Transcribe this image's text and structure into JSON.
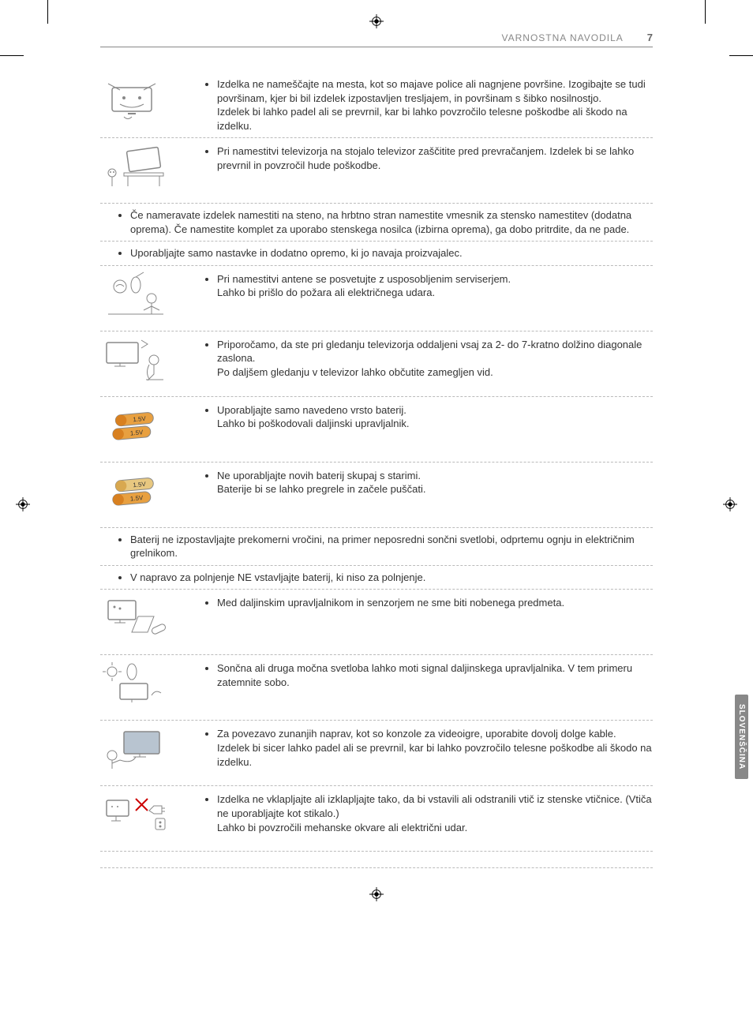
{
  "header": {
    "title": "VARNOSTNA NAVODILA",
    "page": "7"
  },
  "sideTab": "SLOVENŠČINA",
  "rows": [
    {
      "type": "icon",
      "text": "Izdelka ne nameščajte na mesta, kot so majave police ali nagnjene površine. Izogibajte se tudi površinam, kjer bi bil izdelek izpostavljen tresljajem, in površinam s šibko nosilnostjo.\nIzdelek bi lahko padel ali se prevrnil, kar bi lahko povzročilo telesne poškodbe ali škodo na izdelku."
    },
    {
      "type": "icon",
      "text": "Pri namestitvi televizorja na stojalo televizor zaščitite pred prevračanjem. Izdelek bi se lahko prevrnil in povzročil hude poškodbe."
    },
    {
      "type": "full",
      "text": "Če nameravate izdelek namestiti na steno, na hrbtno stran namestite vmesnik za stensko namestitev (dodatna oprema). Če namestite komplet za uporabo stenskega nosilca (izbirna oprema), ga dobo pritrdite, da ne pade."
    },
    {
      "type": "full",
      "text": "Uporabljajte samo nastavke in dodatno opremo, ki jo navaja proizvajalec."
    },
    {
      "type": "icon",
      "text": "Pri namestitvi antene se posvetujte z usposobljenim serviserjem.\nLahko bi prišlo do požara ali električnega udara."
    },
    {
      "type": "icon",
      "text": "Priporočamo, da ste pri gledanju televizorja oddaljeni vsaj za 2- do 7-kratno dolžino diagonale zaslona.\nPo daljšem gledanju v televizor lahko občutite zamegljen vid."
    },
    {
      "type": "icon",
      "text": "Uporabljajte samo navedeno vrsto baterij.\nLahko bi poškodovali daljinski upravljalnik."
    },
    {
      "type": "icon",
      "text": "Ne uporabljajte novih baterij skupaj s starimi.\nBaterije bi se lahko pregrele in začele puščati."
    },
    {
      "type": "full",
      "text": "Baterij ne izpostavljajte prekomerni vročini, na primer neposredni sončni svetlobi, odprtemu ognju in električnim grelnikom."
    },
    {
      "type": "full",
      "text": "V napravo za polnjenje NE vstavljajte baterij, ki niso za polnjenje."
    },
    {
      "type": "icon",
      "text": "Med daljinskim upravljalnikom in senzorjem ne sme biti nobenega predmeta."
    },
    {
      "type": "icon",
      "text": "Sončna ali druga močna svetloba lahko moti signal daljinskega upravljalnika. V tem primeru zatemnite sobo."
    },
    {
      "type": "icon",
      "text": "Za povezavo zunanjih naprav, kot so konzole za videoigre, uporabite dovolj dolge kable.\nIzdelek bi sicer lahko padel ali se prevrnil, kar bi lahko povzročilo telesne poškodbe ali škodo na izdelku."
    },
    {
      "type": "icon",
      "text": "Izdelka ne vklapljajte ali izklapljajte tako, da bi vstavili ali odstranili vtič iz stenske vtičnice. (Vtiča ne uporabljajte kot stikalo.)\nLahko bi povzročili mehanske okvare ali električni udar."
    }
  ],
  "icons": [
    "tv-falling-shelf",
    "tv-stand-person",
    "antenna-installer",
    "tv-viewing-distance",
    "batteries-two",
    "batteries-mixed",
    "remote-obstacle",
    "sun-tv-light",
    "game-console-cable",
    "plug-toggle"
  ]
}
